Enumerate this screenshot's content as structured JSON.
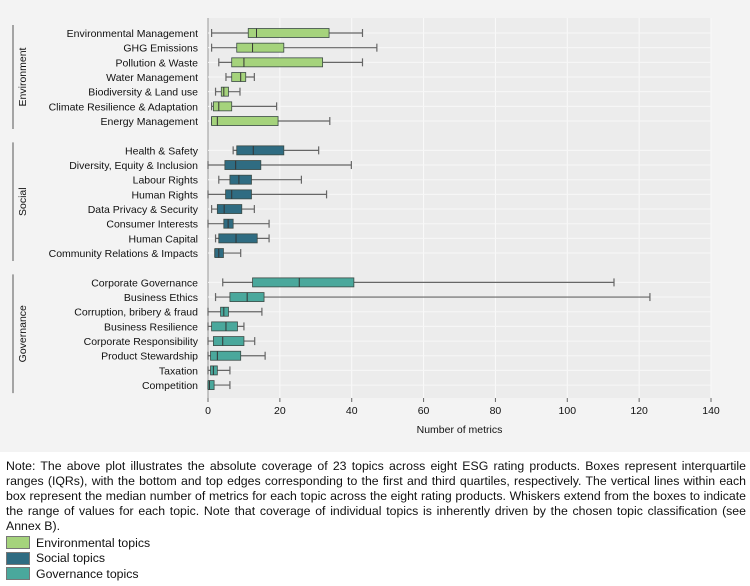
{
  "chart_data": {
    "type": "box",
    "xlabel": "Number of metrics",
    "xlim": [
      0,
      140
    ],
    "xticks": [
      0,
      20,
      40,
      60,
      80,
      100,
      120,
      140
    ],
    "grid": true,
    "groups": [
      {
        "name": "Environment",
        "color": "#a5d37c",
        "topics": [
          {
            "label": "Environmental Management",
            "min": 1,
            "q1": 11.2,
            "median": 13.5,
            "q3": 33.7,
            "max": 43
          },
          {
            "label": "GHG Emissions",
            "min": 1,
            "q1": 8,
            "median": 12.4,
            "q3": 21.1,
            "max": 47
          },
          {
            "label": "Pollution & Waste",
            "min": 3,
            "q1": 6.6,
            "median": 10,
            "q3": 31.9,
            "max": 43
          },
          {
            "label": "Water Management",
            "min": 5,
            "q1": 6.6,
            "median": 9.1,
            "q3": 10.5,
            "max": 12.9
          },
          {
            "label": "Biodiversity & Land use",
            "min": 2.1,
            "q1": 3.7,
            "median": 4.4,
            "q3": 5.7,
            "max": 8.9
          },
          {
            "label": "Climate Resilience & Adaptation",
            "min": 1,
            "q1": 1.5,
            "median": 3,
            "q3": 6.6,
            "max": 19.1
          },
          {
            "label": "Energy Management",
            "min": 1,
            "q1": 1,
            "median": 2.6,
            "q3": 19.5,
            "max": 33.9
          }
        ]
      },
      {
        "name": "Social",
        "color": "#2f6c82",
        "topics": [
          {
            "label": "Health & Safety",
            "min": 7,
            "q1": 8,
            "median": 12.6,
            "q3": 21.1,
            "max": 30.8
          },
          {
            "label": "Diversity, Equity & Inclusion",
            "min": 0,
            "q1": 4.7,
            "median": 7.7,
            "q3": 14.7,
            "max": 39.9
          },
          {
            "label": "Labour Rights",
            "min": 3,
            "q1": 6.1,
            "median": 8.6,
            "q3": 12.1,
            "max": 26
          },
          {
            "label": "Human Rights",
            "min": 0,
            "q1": 4.9,
            "median": 6.6,
            "q3": 12.1,
            "max": 33
          },
          {
            "label": "Data Privacy & Security",
            "min": 1,
            "q1": 2.6,
            "median": 4.5,
            "q3": 9.4,
            "max": 12.9
          },
          {
            "label": "Consumer Interests",
            "min": 0,
            "q1": 4.4,
            "median": 5.6,
            "q3": 7,
            "max": 17
          },
          {
            "label": "Human Capital",
            "min": 2.1,
            "q1": 3,
            "median": 7.8,
            "q3": 13.7,
            "max": 17
          },
          {
            "label": "Community Relations & Impacts",
            "min": 1.9,
            "q1": 1.9,
            "median": 3,
            "q3": 4.3,
            "max": 9.1
          }
        ]
      },
      {
        "name": "Governance",
        "color": "#4aa89c",
        "topics": [
          {
            "label": "Corporate Governance",
            "min": 4.1,
            "q1": 12.4,
            "median": 25.4,
            "q3": 40.6,
            "max": 113
          },
          {
            "label": "Business Ethics",
            "min": 2.1,
            "q1": 6.1,
            "median": 10.9,
            "q3": 15.6,
            "max": 123
          },
          {
            "label": "Corruption, bribery & fraud",
            "min": 0,
            "q1": 3.5,
            "median": 4.4,
            "q3": 5.7,
            "max": 15
          },
          {
            "label": "Business Resilience",
            "min": 0,
            "q1": 1,
            "median": 5,
            "q3": 8.2,
            "max": 10
          },
          {
            "label": "Corporate Responsibility",
            "min": 0,
            "q1": 1.5,
            "median": 4.1,
            "q3": 10,
            "max": 13
          },
          {
            "label": "Product Stewardship",
            "min": 0,
            "q1": 0.7,
            "median": 2.6,
            "q3": 9.1,
            "max": 15.9
          },
          {
            "label": "Taxation",
            "min": 0,
            "q1": 0.7,
            "median": 1.5,
            "q3": 2.6,
            "max": 6.1
          },
          {
            "label": "Competition",
            "min": 0,
            "q1": 0,
            "median": 0.4,
            "q3": 1.7,
            "max": 6.1
          }
        ]
      }
    ]
  },
  "note": "Note: The above plot illustrates the absolute coverage of 23 topics across eight ESG rating products. Boxes represent interquartile ranges (IQRs), with the bottom and top edges corresponding to the first and third quartiles, respectively. The vertical lines within each box represent the median number of metrics for each topic across the eight rating products. Whiskers extend from the boxes to indicate the range of values for each topic. Note that coverage of individual topics is inherently driven by the chosen topic classification (see Annex B).",
  "legend": [
    {
      "label": "Environmental topics",
      "color": "#a5d37c"
    },
    {
      "label": "Social topics",
      "color": "#2f6c82"
    },
    {
      "label": "Governance topics",
      "color": "#4aa89c"
    }
  ]
}
